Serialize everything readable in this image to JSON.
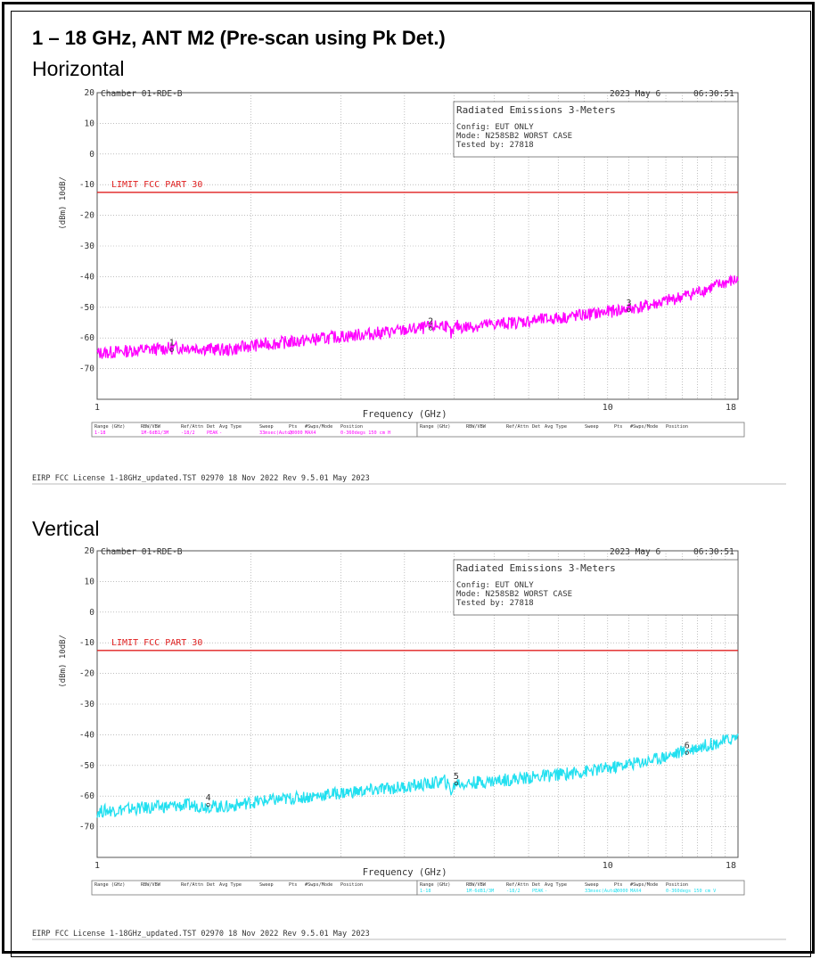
{
  "page": {
    "title": "1 – 18 GHz, ANT M2 (Pre-scan using Pk Det.)"
  },
  "panels": [
    {
      "subtitle": "Horizontal",
      "chamber": "Chamber 01-RDE-B",
      "date": "2023 May 6",
      "time": "06:30:51",
      "info_title": "Radiated Emissions 3-Meters",
      "config": "Config: EUT ONLY",
      "mode": "Mode: N258SB2 WORST CASE",
      "tested_by": "Tested by: 27818",
      "limit_label": "LIMIT FCC PART 30",
      "footer": "EIRP FCC License 1-18GHz_updated.TST 02970 18 Nov 2022 Rev 9.5.01 May 2023",
      "table_headers": [
        "Range (GHz)",
        "RBW/VBW",
        "Ref/Attn",
        "Det",
        "Avg Type",
        "Sweep",
        "Pts",
        "#Swps/Mode",
        "Position"
      ],
      "table_values": [
        "1-18",
        "1M-6dB1/3M",
        "-18/2",
        "PEAK",
        "-",
        "33msec(Auto)",
        "20000",
        "MAX4",
        "0-360degs 150 cm H"
      ],
      "active_table": 0
    },
    {
      "subtitle": "Vertical",
      "chamber": "Chamber 01-RDE-B",
      "date": "2023 May 6",
      "time": "06:30:51",
      "info_title": "Radiated Emissions 3-Meters",
      "config": "Config: EUT ONLY",
      "mode": "Mode: N258SB2 WORST CASE",
      "tested_by": "Tested by: 27818",
      "limit_label": "LIMIT FCC PART 30",
      "footer": "EIRP FCC License 1-18GHz_updated.TST 02970 18 Nov 2022 Rev 9.5.01 May 2023",
      "table_headers": [
        "Range (GHz)",
        "RBW/VBW",
        "Ref/Attn",
        "Det",
        "Avg Type",
        "Sweep",
        "Pts",
        "#Swps/Mode",
        "Position"
      ],
      "table_values": [
        "1-18",
        "1M-6dB1/3M",
        "-18/2",
        "PEAK",
        "-",
        "33msec(Auto)",
        "20000",
        "MAX4",
        "0-360degs 150 cm V"
      ],
      "active_table": 1
    }
  ],
  "chart_data": [
    {
      "type": "line",
      "xlabel": "Frequency (GHz)",
      "ylabel": "(dBm) 10dB/",
      "xscale": "log",
      "xlim": [
        1,
        18
      ],
      "ylim": [
        -80,
        20
      ],
      "x_tick_labels": [
        "1",
        "10",
        "18"
      ],
      "y_tick_labels": [
        "20",
        "10",
        "0",
        "-10",
        "-20",
        "-30",
        "-40",
        "-50",
        "-60",
        "-70"
      ],
      "limit_value": -12.5,
      "limit_color": "#e02020",
      "trace_color": "#ff00ff",
      "trace_x": [
        1,
        1.2,
        1.5,
        1.8,
        2,
        2.5,
        3,
        3.5,
        4,
        4.5,
        4.8,
        4.95,
        5.05,
        5.2,
        6,
        7,
        8,
        9,
        10,
        11,
        12,
        13,
        14,
        15,
        16,
        17,
        18
      ],
      "trace_y": [
        -65,
        -64,
        -63,
        -64,
        -62.5,
        -61,
        -59.5,
        -58.5,
        -57.5,
        -56.5,
        -55.5,
        -59,
        -56,
        -56.5,
        -55.5,
        -54.5,
        -53.5,
        -52.5,
        -51.5,
        -50.5,
        -49.5,
        -48,
        -46.5,
        -45,
        -43.5,
        -42,
        -41
      ],
      "markers": [
        {
          "label": "1",
          "x": 1.4,
          "y": -63
        },
        {
          "label": "2",
          "x": 4.5,
          "y": -56
        },
        {
          "label": "3",
          "x": 11,
          "y": -50
        }
      ]
    },
    {
      "type": "line",
      "xlabel": "Frequency (GHz)",
      "ylabel": "(dBm) 10dB/",
      "xscale": "log",
      "xlim": [
        1,
        18
      ],
      "ylim": [
        -80,
        20
      ],
      "x_tick_labels": [
        "1",
        "10",
        "18"
      ],
      "y_tick_labels": [
        "20",
        "10",
        "0",
        "-10",
        "-20",
        "-30",
        "-40",
        "-50",
        "-60",
        "-70"
      ],
      "limit_value": -12.5,
      "limit_color": "#e02020",
      "trace_color": "#22e0f0",
      "trace_x": [
        1,
        1.2,
        1.5,
        1.8,
        2,
        2.5,
        3,
        3.5,
        4,
        4.5,
        4.8,
        4.95,
        5.05,
        5.2,
        6,
        7,
        8,
        9,
        10,
        11,
        12,
        13,
        14,
        15,
        16,
        17,
        18
      ],
      "trace_y": [
        -65,
        -64,
        -63,
        -63.5,
        -62,
        -60.5,
        -59,
        -58,
        -57,
        -56,
        -55,
        -58.5,
        -55.5,
        -56,
        -55,
        -54,
        -53,
        -52,
        -51,
        -49.5,
        -48.5,
        -47,
        -45.5,
        -44,
        -43,
        -42,
        -40.5
      ],
      "markers": [
        {
          "label": "4",
          "x": 1.65,
          "y": -62
        },
        {
          "label": "5",
          "x": 5.05,
          "y": -55
        },
        {
          "label": "6",
          "x": 14.3,
          "y": -45
        }
      ]
    }
  ]
}
